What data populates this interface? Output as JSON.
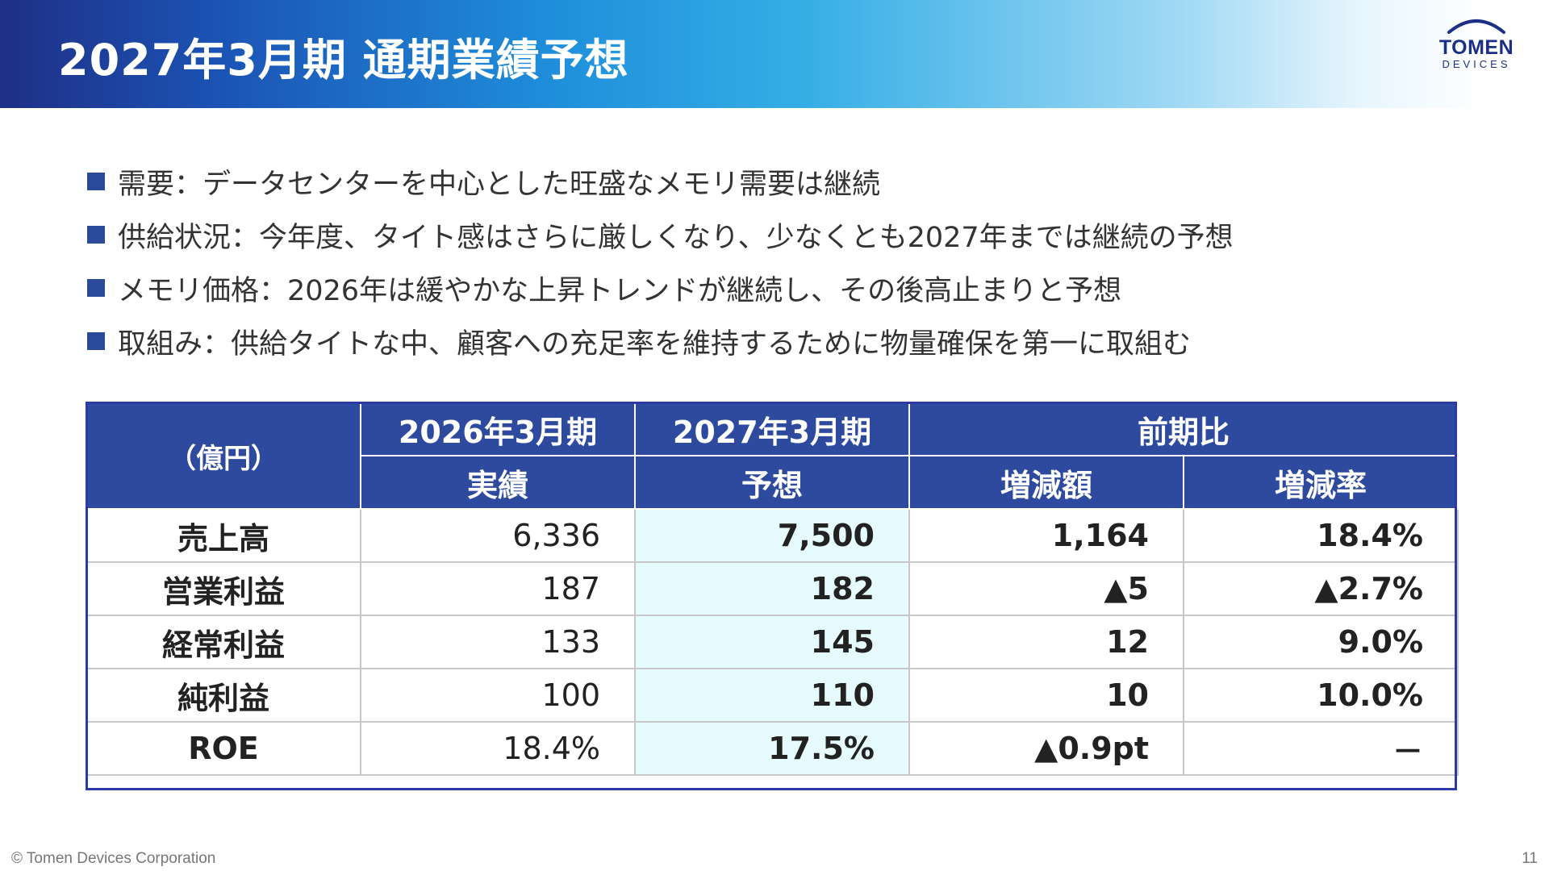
{
  "slide": {
    "title": "2027年3月期 通期業績予想",
    "page_number": "11"
  },
  "logo": {
    "name": "TOMEN",
    "sub": "DEVICES"
  },
  "bullets": [
    "需要：データセンターを中心とした旺盛なメモリ需要は継続",
    "供給状況：今年度、タイト感はさらに厳しくなり、少なくとも2027年までは継続の予想",
    "メモリ価格：2026年は緩やかな上昇トレンドが継続し、その後高止まりと予想",
    "取組み：供給タイトな中、顧客への充足率を維持するために物量確保を第一に取組む"
  ],
  "table": {
    "unit": "（億円）",
    "col_prev": {
      "line1": "2026年3月期",
      "line2": "実績"
    },
    "col_fc": {
      "line1": "2027年3月期",
      "line2": "予想"
    },
    "col_yoy": "前期比",
    "col_diff": "増減額",
    "col_rate": "増減率",
    "rows": [
      {
        "label": "売上高",
        "prev": "6,336",
        "fc": "7,500",
        "diff": "1,164",
        "rate": "18.4%"
      },
      {
        "label": "営業利益",
        "prev": "187",
        "fc": "182",
        "diff": "▲5",
        "rate": "▲2.7%"
      },
      {
        "label": "経常利益",
        "prev": "133",
        "fc": "145",
        "diff": "12",
        "rate": "9.0%"
      },
      {
        "label": "純利益",
        "prev": "100",
        "fc": "110",
        "diff": "10",
        "rate": "10.0%"
      },
      {
        "label": "ROE",
        "prev": "18.4%",
        "fc": "17.5%",
        "diff": "▲0.9pt",
        "rate": "－"
      }
    ]
  },
  "footer": {
    "copyright": "© Tomen Devices Corporation"
  },
  "colors": {
    "header_dark": "#1f2f86",
    "header_mid": "#1f8fdb",
    "table_header": "#2d4a9e",
    "forecast_column": "#e6fbfd",
    "bullet_marker": "#2b4a9b"
  }
}
